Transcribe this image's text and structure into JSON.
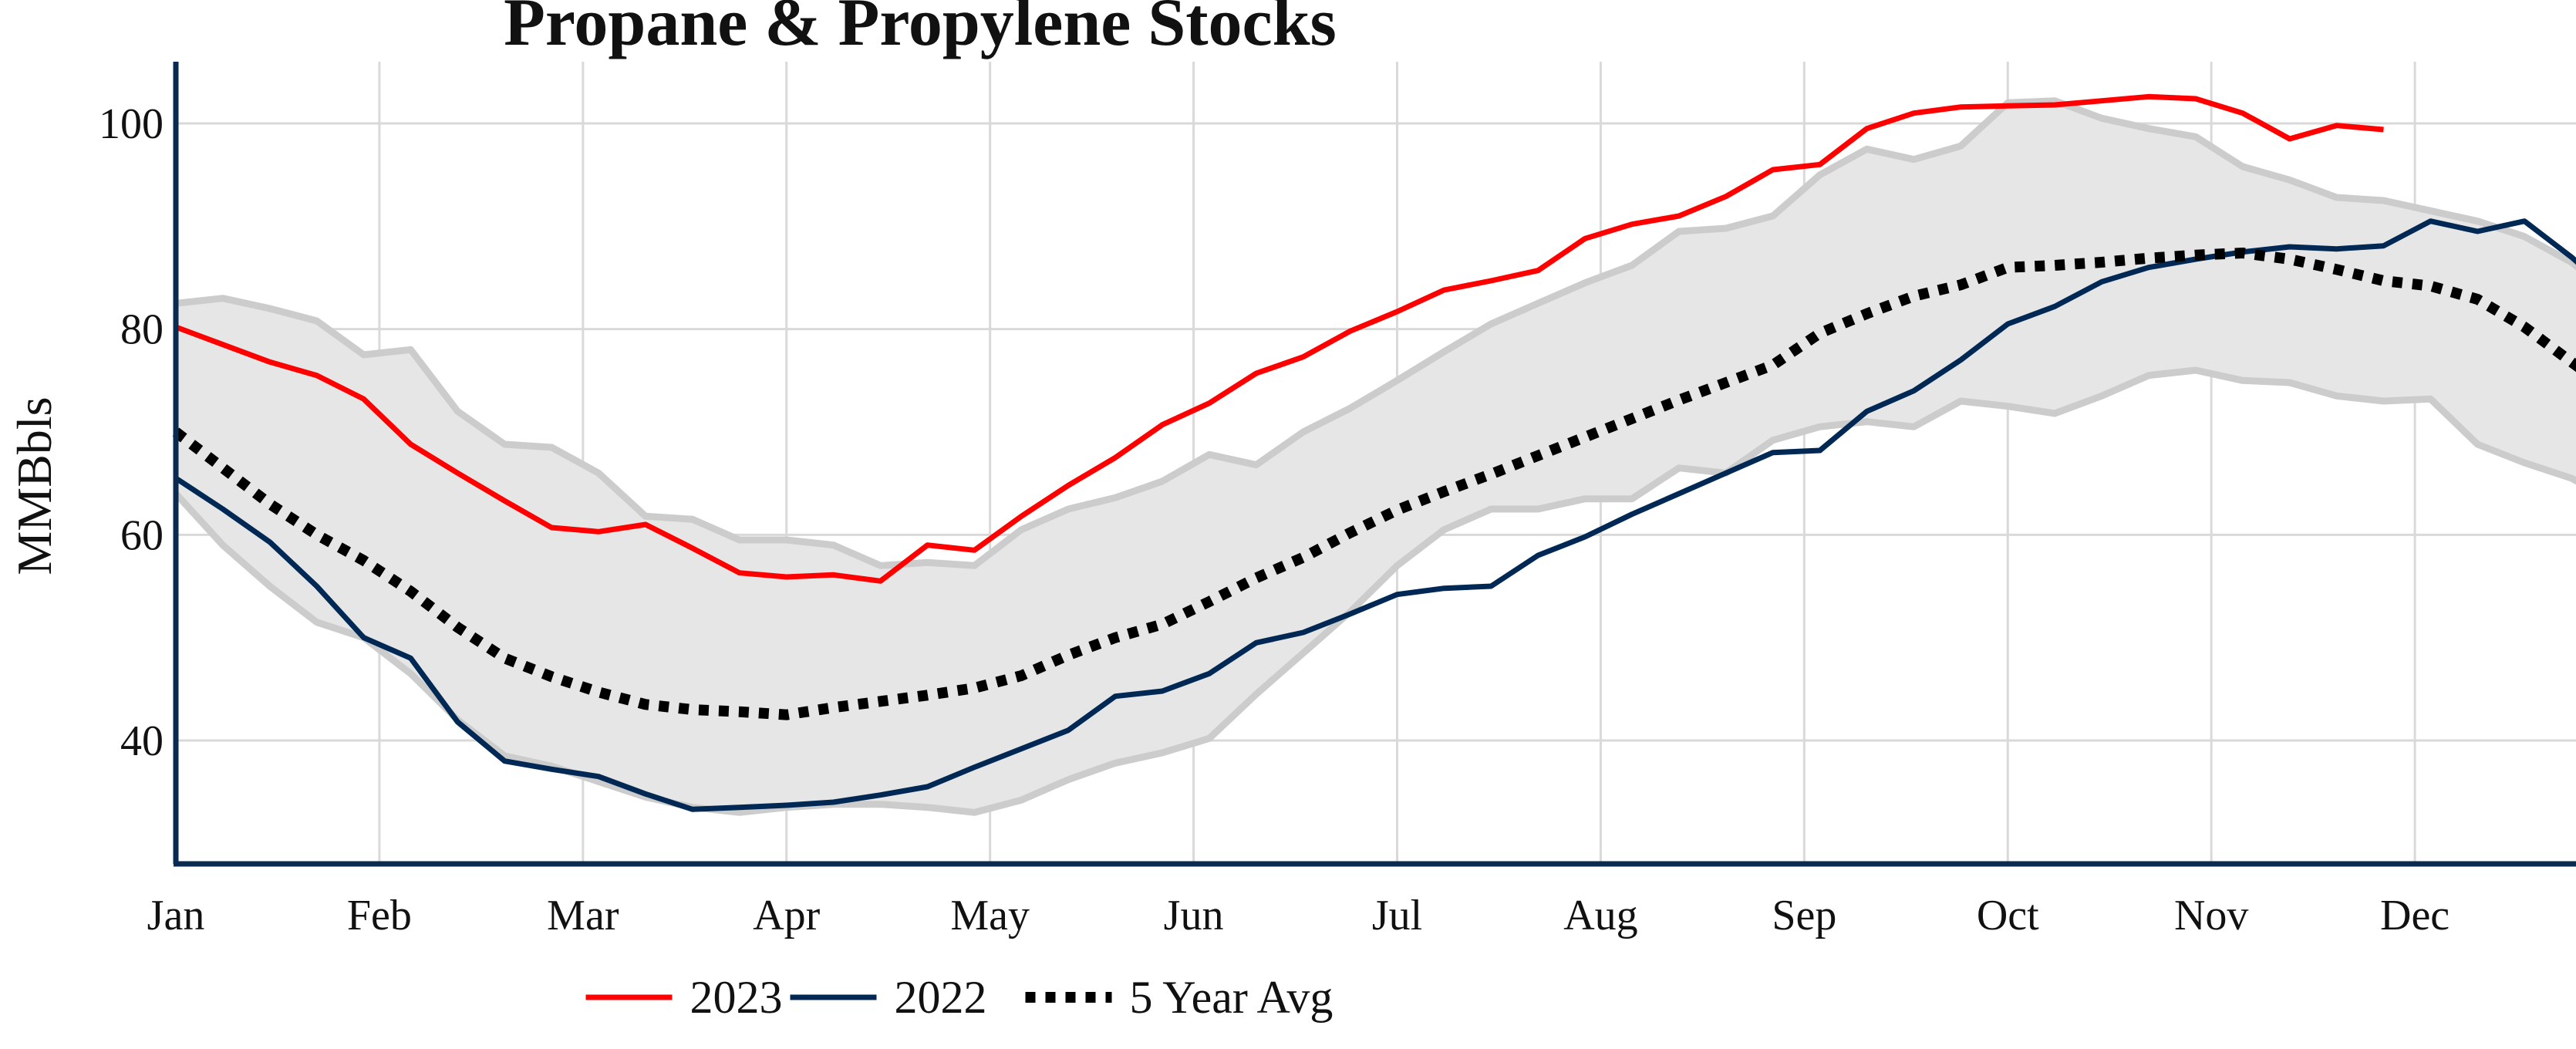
{
  "chart_data": {
    "type": "line",
    "title": "Propane & Propylene Stocks",
    "ylabel": "MMBbls",
    "xlabel": "",
    "ylim": [
      28,
      106
    ],
    "yticks": [
      40,
      60,
      80,
      100
    ],
    "x_tick_labels": [
      "Jan",
      "Feb",
      "Mar",
      "Apr",
      "May",
      "Jun",
      "Jul",
      "Aug",
      "Sep",
      "Oct",
      "Nov",
      "Dec"
    ],
    "x_unit": "week of year (1-53)",
    "xlim": [
      1,
      53
    ],
    "grid": true,
    "legend_position": "bottom-center",
    "colors": {
      "2023": "#ff0000",
      "2022": "#002855",
      "avg": "#000000",
      "range_fill": "#e6e6e6",
      "range_edge": "#cccccc",
      "axis": "#0b2a4f",
      "grid": "#d9d9d9"
    },
    "series": [
      {
        "name": "2023",
        "x": [
          1,
          2,
          3,
          4,
          5,
          6,
          7,
          8,
          9,
          10,
          11,
          12,
          13,
          14,
          15,
          16,
          17,
          18,
          19,
          20,
          21,
          22,
          23,
          24,
          25,
          26,
          27,
          28,
          29,
          30,
          31,
          32,
          33,
          34,
          35,
          36,
          37,
          38,
          39,
          40,
          41,
          42,
          43,
          44,
          45,
          46,
          47,
          48
        ],
        "values": [
          80.2,
          78.5,
          76.8,
          75.5,
          73.2,
          68.8,
          66.0,
          63.3,
          60.7,
          60.3,
          61.0,
          58.7,
          56.3,
          55.9,
          56.1,
          55.5,
          59.0,
          58.5,
          61.8,
          64.8,
          67.5,
          70.7,
          72.8,
          75.7,
          77.3,
          79.8,
          81.7,
          83.8,
          84.7,
          85.7,
          88.8,
          90.2,
          91.0,
          92.9,
          95.5,
          96.0,
          99.5,
          101.0,
          101.6,
          101.7,
          101.8,
          102.2,
          102.6,
          102.4,
          101.0,
          98.5,
          99.8,
          99.4
        ]
      },
      {
        "name": "2022",
        "x": [
          1,
          2,
          3,
          4,
          5,
          6,
          7,
          8,
          9,
          10,
          11,
          12,
          13,
          14,
          15,
          16,
          17,
          18,
          19,
          20,
          21,
          22,
          23,
          24,
          25,
          26,
          27,
          28,
          29,
          30,
          31,
          32,
          33,
          34,
          35,
          36,
          37,
          38,
          39,
          40,
          41,
          42,
          43,
          44,
          45,
          46,
          47,
          48,
          49,
          50,
          51,
          52,
          53
        ],
        "values": [
          65.5,
          62.5,
          59.3,
          55.0,
          50.0,
          48.0,
          41.8,
          38.0,
          37.2,
          36.5,
          34.8,
          33.3,
          33.5,
          33.7,
          34.0,
          34.7,
          35.5,
          37.4,
          39.2,
          41.0,
          44.3,
          44.8,
          46.5,
          49.5,
          50.5,
          52.3,
          54.2,
          54.8,
          55.0,
          58.0,
          59.8,
          62.0,
          64.0,
          66.0,
          68.0,
          68.2,
          72.0,
          74.0,
          77.0,
          80.5,
          82.2,
          84.6,
          86.0,
          86.8,
          87.5,
          88.0,
          87.8,
          88.1,
          90.5,
          89.5,
          90.5,
          87.0,
          83.0
        ]
      },
      {
        "name": "5 Year Avg",
        "x": [
          1,
          2,
          3,
          4,
          5,
          6,
          7,
          8,
          9,
          10,
          11,
          12,
          13,
          14,
          15,
          16,
          17,
          18,
          19,
          20,
          21,
          22,
          23,
          24,
          25,
          26,
          27,
          28,
          29,
          30,
          31,
          32,
          33,
          34,
          35,
          36,
          37,
          38,
          39,
          40,
          41,
          42,
          43,
          44,
          45,
          46,
          47,
          48,
          49,
          50,
          51,
          52,
          53
        ],
        "values": [
          70.0,
          66.5,
          63.0,
          60.0,
          57.5,
          54.5,
          51.0,
          48.0,
          46.2,
          44.7,
          43.5,
          43.0,
          42.8,
          42.5,
          43.2,
          43.8,
          44.4,
          45.1,
          46.3,
          48.3,
          50.0,
          51.3,
          53.5,
          55.8,
          57.8,
          60.2,
          62.4,
          64.2,
          65.9,
          67.7,
          69.5,
          71.3,
          73.1,
          74.8,
          76.5,
          79.6,
          81.5,
          83.2,
          84.3,
          86.0,
          86.2,
          86.5,
          86.9,
          87.2,
          87.4,
          86.8,
          85.8,
          84.7,
          84.2,
          82.9,
          80.2,
          76.8,
          73.5
        ]
      },
      {
        "name": "",
        "role": "5-year range (min/max)",
        "x": [
          1,
          2,
          3,
          4,
          5,
          6,
          7,
          8,
          9,
          10,
          11,
          12,
          13,
          14,
          15,
          16,
          17,
          18,
          19,
          20,
          21,
          22,
          23,
          24,
          25,
          26,
          27,
          28,
          29,
          30,
          31,
          32,
          33,
          34,
          35,
          36,
          37,
          38,
          39,
          40,
          41,
          42,
          43,
          44,
          45,
          46,
          47,
          48,
          49,
          50,
          51,
          52,
          53
        ],
        "max": [
          82.5,
          83.0,
          82.0,
          80.8,
          77.5,
          78.0,
          72.0,
          68.8,
          68.5,
          66.0,
          61.8,
          61.5,
          59.5,
          59.5,
          59.0,
          57.0,
          57.3,
          57.0,
          60.5,
          62.5,
          63.6,
          65.2,
          67.8,
          66.8,
          70.0,
          72.3,
          75.0,
          77.8,
          80.5,
          82.5,
          84.5,
          86.2,
          89.5,
          89.8,
          91.0,
          95.0,
          97.5,
          96.5,
          97.8,
          102.0,
          102.2,
          100.5,
          99.5,
          98.7,
          95.8,
          94.5,
          92.8,
          92.5,
          91.5,
          90.5,
          89.0,
          86.5,
          83.0
        ],
        "min": [
          64.0,
          59.0,
          55.0,
          51.5,
          50.0,
          46.5,
          42.0,
          38.5,
          37.5,
          36.0,
          34.5,
          33.5,
          33.0,
          33.5,
          33.8,
          33.8,
          33.5,
          33.0,
          34.2,
          36.2,
          37.8,
          38.8,
          40.2,
          44.5,
          48.5,
          52.5,
          57.0,
          60.5,
          62.5,
          62.5,
          63.5,
          63.5,
          66.5,
          66.0,
          69.2,
          70.5,
          71.0,
          70.5,
          73.0,
          72.5,
          71.8,
          73.5,
          75.5,
          76.0,
          75.0,
          74.8,
          73.5,
          73.0,
          73.2,
          68.8,
          67.0,
          65.5,
          63.0
        ]
      }
    ],
    "legend": [
      {
        "label": "2023",
        "style": "solid",
        "color": "#ff0000"
      },
      {
        "label": "2022",
        "style": "solid",
        "color": "#002855"
      },
      {
        "label": "5 Year Avg",
        "style": "dotted",
        "color": "#000000"
      }
    ]
  }
}
